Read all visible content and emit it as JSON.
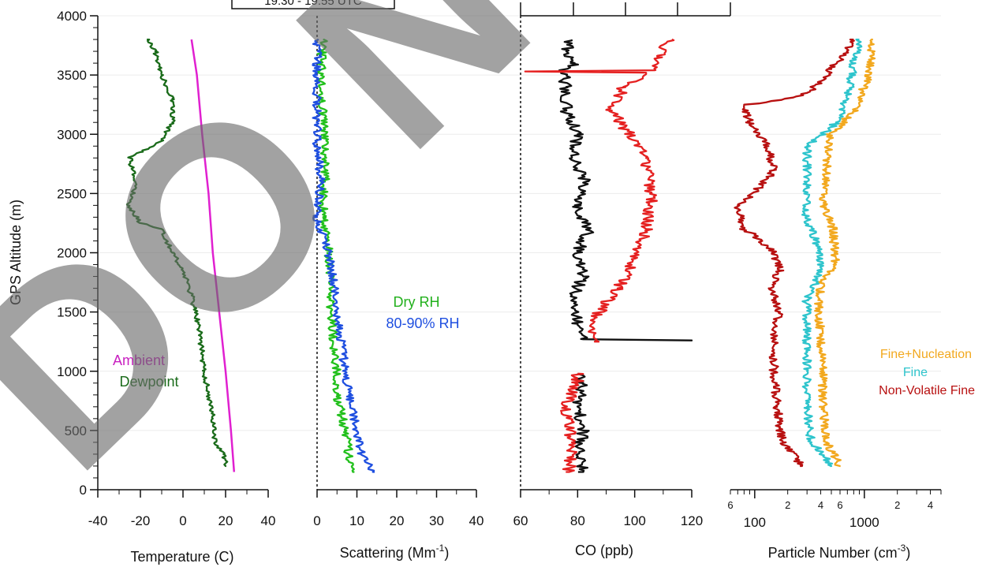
{
  "watermark": {
    "text": "DO NOT",
    "box_text": "19:30 - 19:55 UTC"
  },
  "chart_data": [
    {
      "type": "line",
      "xlabel": "Temperature (C)",
      "ylabel": "GPS Altitude (m)",
      "xlim": [
        -40,
        40
      ],
      "ylim": [
        0,
        4000
      ],
      "xticks": [
        "-40",
        "-20",
        "0",
        "20",
        "40"
      ],
      "yticks": [
        "0",
        "500",
        "1000",
        "1500",
        "2000",
        "2500",
        "3000",
        "3500",
        "4000"
      ],
      "legend": [
        "Ambient",
        "Dewpoint"
      ],
      "series": [
        {
          "name": "Ambient",
          "color": "#e020d0",
          "points": [
            [
              24,
              150
            ],
            [
              22.5,
              500
            ],
            [
              20,
              1000
            ],
            [
              17,
              1500
            ],
            [
              14,
              2000
            ],
            [
              12,
              2500
            ],
            [
              9,
              3000
            ],
            [
              6.5,
              3500
            ],
            [
              4,
              3800
            ]
          ]
        },
        {
          "name": "Dewpoint",
          "color": "#1a6b1a",
          "points": [
            [
              20,
              200
            ],
            [
              19,
              300
            ],
            [
              15,
              400
            ],
            [
              14,
              600
            ],
            [
              12,
              800
            ],
            [
              10,
              1000
            ],
            [
              8,
              1300
            ],
            [
              6,
              1500
            ],
            [
              3,
              1700
            ],
            [
              0,
              1850
            ],
            [
              -5,
              2000
            ],
            [
              -10,
              2200
            ],
            [
              -20,
              2250
            ],
            [
              -26,
              2400
            ],
            [
              -22,
              2550
            ],
            [
              -25,
              2800
            ],
            [
              -20,
              2850
            ],
            [
              -10,
              2950
            ],
            [
              -5,
              3100
            ],
            [
              -5,
              3300
            ],
            [
              -10,
              3500
            ],
            [
              -13,
              3700
            ],
            [
              -17,
              3800
            ]
          ]
        }
      ]
    },
    {
      "type": "line",
      "xlabel": "Scattering (Mm",
      "xlabel_sup": "-1",
      "xlabel_tail": ")",
      "xlim": [
        0,
        40
      ],
      "ylim": [
        0,
        4000
      ],
      "xticks": [
        "0",
        "10",
        "20",
        "30",
        "40"
      ],
      "legend": [
        "Dry RH",
        "80-90% RH"
      ],
      "series": [
        {
          "name": "Dry RH",
          "color": "#22c01c",
          "points": [
            [
              9,
              150
            ],
            [
              8,
              300
            ],
            [
              7,
              500
            ],
            [
              5,
              800
            ],
            [
              5,
              1000
            ],
            [
              4,
              1300
            ],
            [
              3.5,
              1500
            ],
            [
              3,
              2000
            ],
            [
              1.5,
              2300
            ],
            [
              2,
              2600
            ],
            [
              2,
              3000
            ],
            [
              1,
              3300
            ],
            [
              1,
              3600
            ],
            [
              1.5,
              3800
            ]
          ]
        },
        {
          "name": "80-90% RH",
          "color": "#1f4fe0",
          "points": [
            [
              14,
              150
            ],
            [
              11,
              300
            ],
            [
              10,
              500
            ],
            [
              8,
              800
            ],
            [
              7,
              1000
            ],
            [
              6,
              1300
            ],
            [
              5,
              1500
            ],
            [
              4,
              1800
            ],
            [
              3,
              2000
            ],
            [
              0,
              2300
            ],
            [
              1,
              2600
            ],
            [
              0,
              2900
            ],
            [
              0,
              3200
            ],
            [
              0,
              3500
            ],
            [
              0,
              3800
            ]
          ]
        }
      ]
    },
    {
      "type": "line",
      "xlabel": "CO (ppb)",
      "xlim": [
        60,
        120
      ],
      "ylim": [
        0,
        4000
      ],
      "xticks": [
        "60",
        "80",
        "100",
        "120"
      ],
      "series": [
        {
          "name": "",
          "color": "#111111",
          "segments": [
            [
              [
                82,
                150
              ],
              [
                80,
                300
              ],
              [
                82,
                500
              ],
              [
                80,
                700
              ],
              [
                82,
                900
              ],
              [
                80,
                980
              ]
            ],
            [
              [
                120,
                1260
              ],
              [
                82,
                1270
              ],
              [
                80,
                1400
              ],
              [
                78,
                1600
              ],
              [
                82,
                1800
              ],
              [
                80,
                2000
              ],
              [
                84,
                2200
              ],
              [
                79,
                2400
              ],
              [
                83,
                2600
              ],
              [
                78,
                2800
              ],
              [
                80,
                3000
              ],
              [
                76,
                3200
              ],
              [
                76,
                3400
              ],
              [
                75,
                3530
              ],
              [
                79,
                3600
              ],
              [
                76,
                3700
              ],
              [
                78,
                3800
              ]
            ]
          ]
        },
        {
          "name": "",
          "color": "#e52020",
          "segments": [
            [
              [
                77,
                150
              ],
              [
                78,
                400
              ],
              [
                76,
                700
              ],
              [
                80,
                900
              ],
              [
                80,
                980
              ]
            ],
            [
              [
                86,
                1250
              ],
              [
                86,
                1450
              ],
              [
                94,
                1700
              ],
              [
                100,
                1950
              ],
              [
                104,
                2200
              ],
              [
                106,
                2500
              ],
              [
                104,
                2800
              ],
              [
                98,
                3000
              ],
              [
                92,
                3200
              ],
              [
                96,
                3400
              ],
              [
                104,
                3520
              ],
              [
                62,
                3530
              ],
              [
                107,
                3540
              ],
              [
                108,
                3650
              ],
              [
                113,
                3800
              ]
            ]
          ]
        }
      ]
    },
    {
      "type": "line",
      "xlabel": "Particle Number (cm",
      "xlabel_sup": "-3",
      "xlabel_tail": ")",
      "xscale": "log",
      "xlim": [
        60,
        5000
      ],
      "ylim": [
        0,
        4000
      ],
      "xticks": [
        "100",
        "1000"
      ],
      "minor_tick_labels": [
        {
          "value": 60,
          "label": "6"
        },
        {
          "value": 200,
          "label": "2"
        },
        {
          "value": 400,
          "label": "4"
        },
        {
          "value": 600,
          "label": "6"
        },
        {
          "value": 2000,
          "label": "2"
        },
        {
          "value": 4000,
          "label": "4"
        }
      ],
      "legend": [
        "Fine+Nucleation",
        "Fine",
        "Non-Volatile Fine"
      ],
      "series": [
        {
          "name": "Fine+Nucleation",
          "color": "#f2a81e",
          "points": [
            [
              600,
              200
            ],
            [
              450,
              400
            ],
            [
              420,
              700
            ],
            [
              420,
              1000
            ],
            [
              400,
              1300
            ],
            [
              380,
              1600
            ],
            [
              420,
              1800
            ],
            [
              550,
              1900
            ],
            [
              520,
              2200
            ],
            [
              420,
              2400
            ],
            [
              450,
              2700
            ],
            [
              480,
              3000
            ],
            [
              800,
              3200
            ],
            [
              1100,
              3500
            ],
            [
              1200,
              3800
            ]
          ]
        },
        {
          "name": "Fine",
          "color": "#2ec4cc",
          "points": [
            [
              500,
              200
            ],
            [
              330,
              400
            ],
            [
              300,
              700
            ],
            [
              300,
              1000
            ],
            [
              300,
              1300
            ],
            [
              300,
              1600
            ],
            [
              380,
              1800
            ],
            [
              400,
              2000
            ],
            [
              290,
              2300
            ],
            [
              300,
              2600
            ],
            [
              300,
              2900
            ],
            [
              550,
              3100
            ],
            [
              700,
              3300
            ],
            [
              800,
              3600
            ],
            [
              900,
              3800
            ]
          ]
        },
        {
          "name": "Non-Volatile Fine",
          "color": "#b81010",
          "points": [
            [
              270,
              200
            ],
            [
              180,
              400
            ],
            [
              160,
              700
            ],
            [
              150,
              1000
            ],
            [
              150,
              1300
            ],
            [
              170,
              1500
            ],
            [
              140,
              1700
            ],
            [
              170,
              1850
            ],
            [
              150,
              2000
            ],
            [
              80,
              2200
            ],
            [
              70,
              2400
            ],
            [
              150,
              2700
            ],
            [
              130,
              2900
            ],
            [
              90,
              3100
            ],
            [
              80,
              3250
            ],
            [
              300,
              3350
            ],
            [
              500,
              3550
            ],
            [
              800,
              3800
            ]
          ]
        }
      ]
    }
  ]
}
